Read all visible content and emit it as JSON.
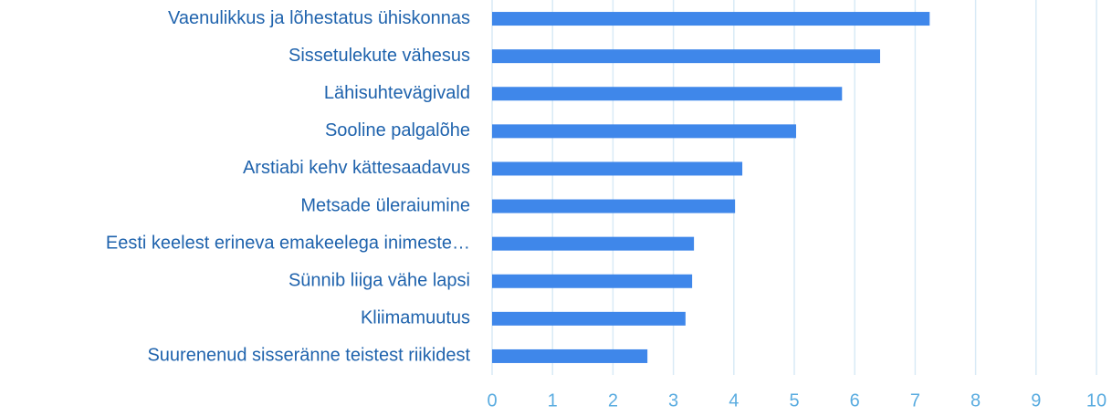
{
  "chart_data": {
    "type": "hbar",
    "categories": [
      "Vaenulikkus ja lõhestatus ühiskonnas",
      "Sissetulekute vähesus",
      "Lähisuhtevägivald",
      "Sooline palgalõhe",
      "Arstiabi kehv kättesaadavus",
      "Metsade üleraiumine",
      "Eesti keelest erineva emakeelega inimeste…",
      "Sünnib liiga vähe lapsi",
      "Kliimamuutus",
      "Suurenenud sisseränne teistest riikidest"
    ],
    "values": [
      7.24,
      6.42,
      5.79,
      5.03,
      4.14,
      4.02,
      3.34,
      3.31,
      3.2,
      2.57
    ],
    "color": "#3f87ea",
    "xlim": [
      0,
      10
    ],
    "xticks": [
      0,
      1,
      2,
      3,
      4,
      5,
      6,
      7,
      8,
      9,
      10
    ],
    "grid": true
  }
}
